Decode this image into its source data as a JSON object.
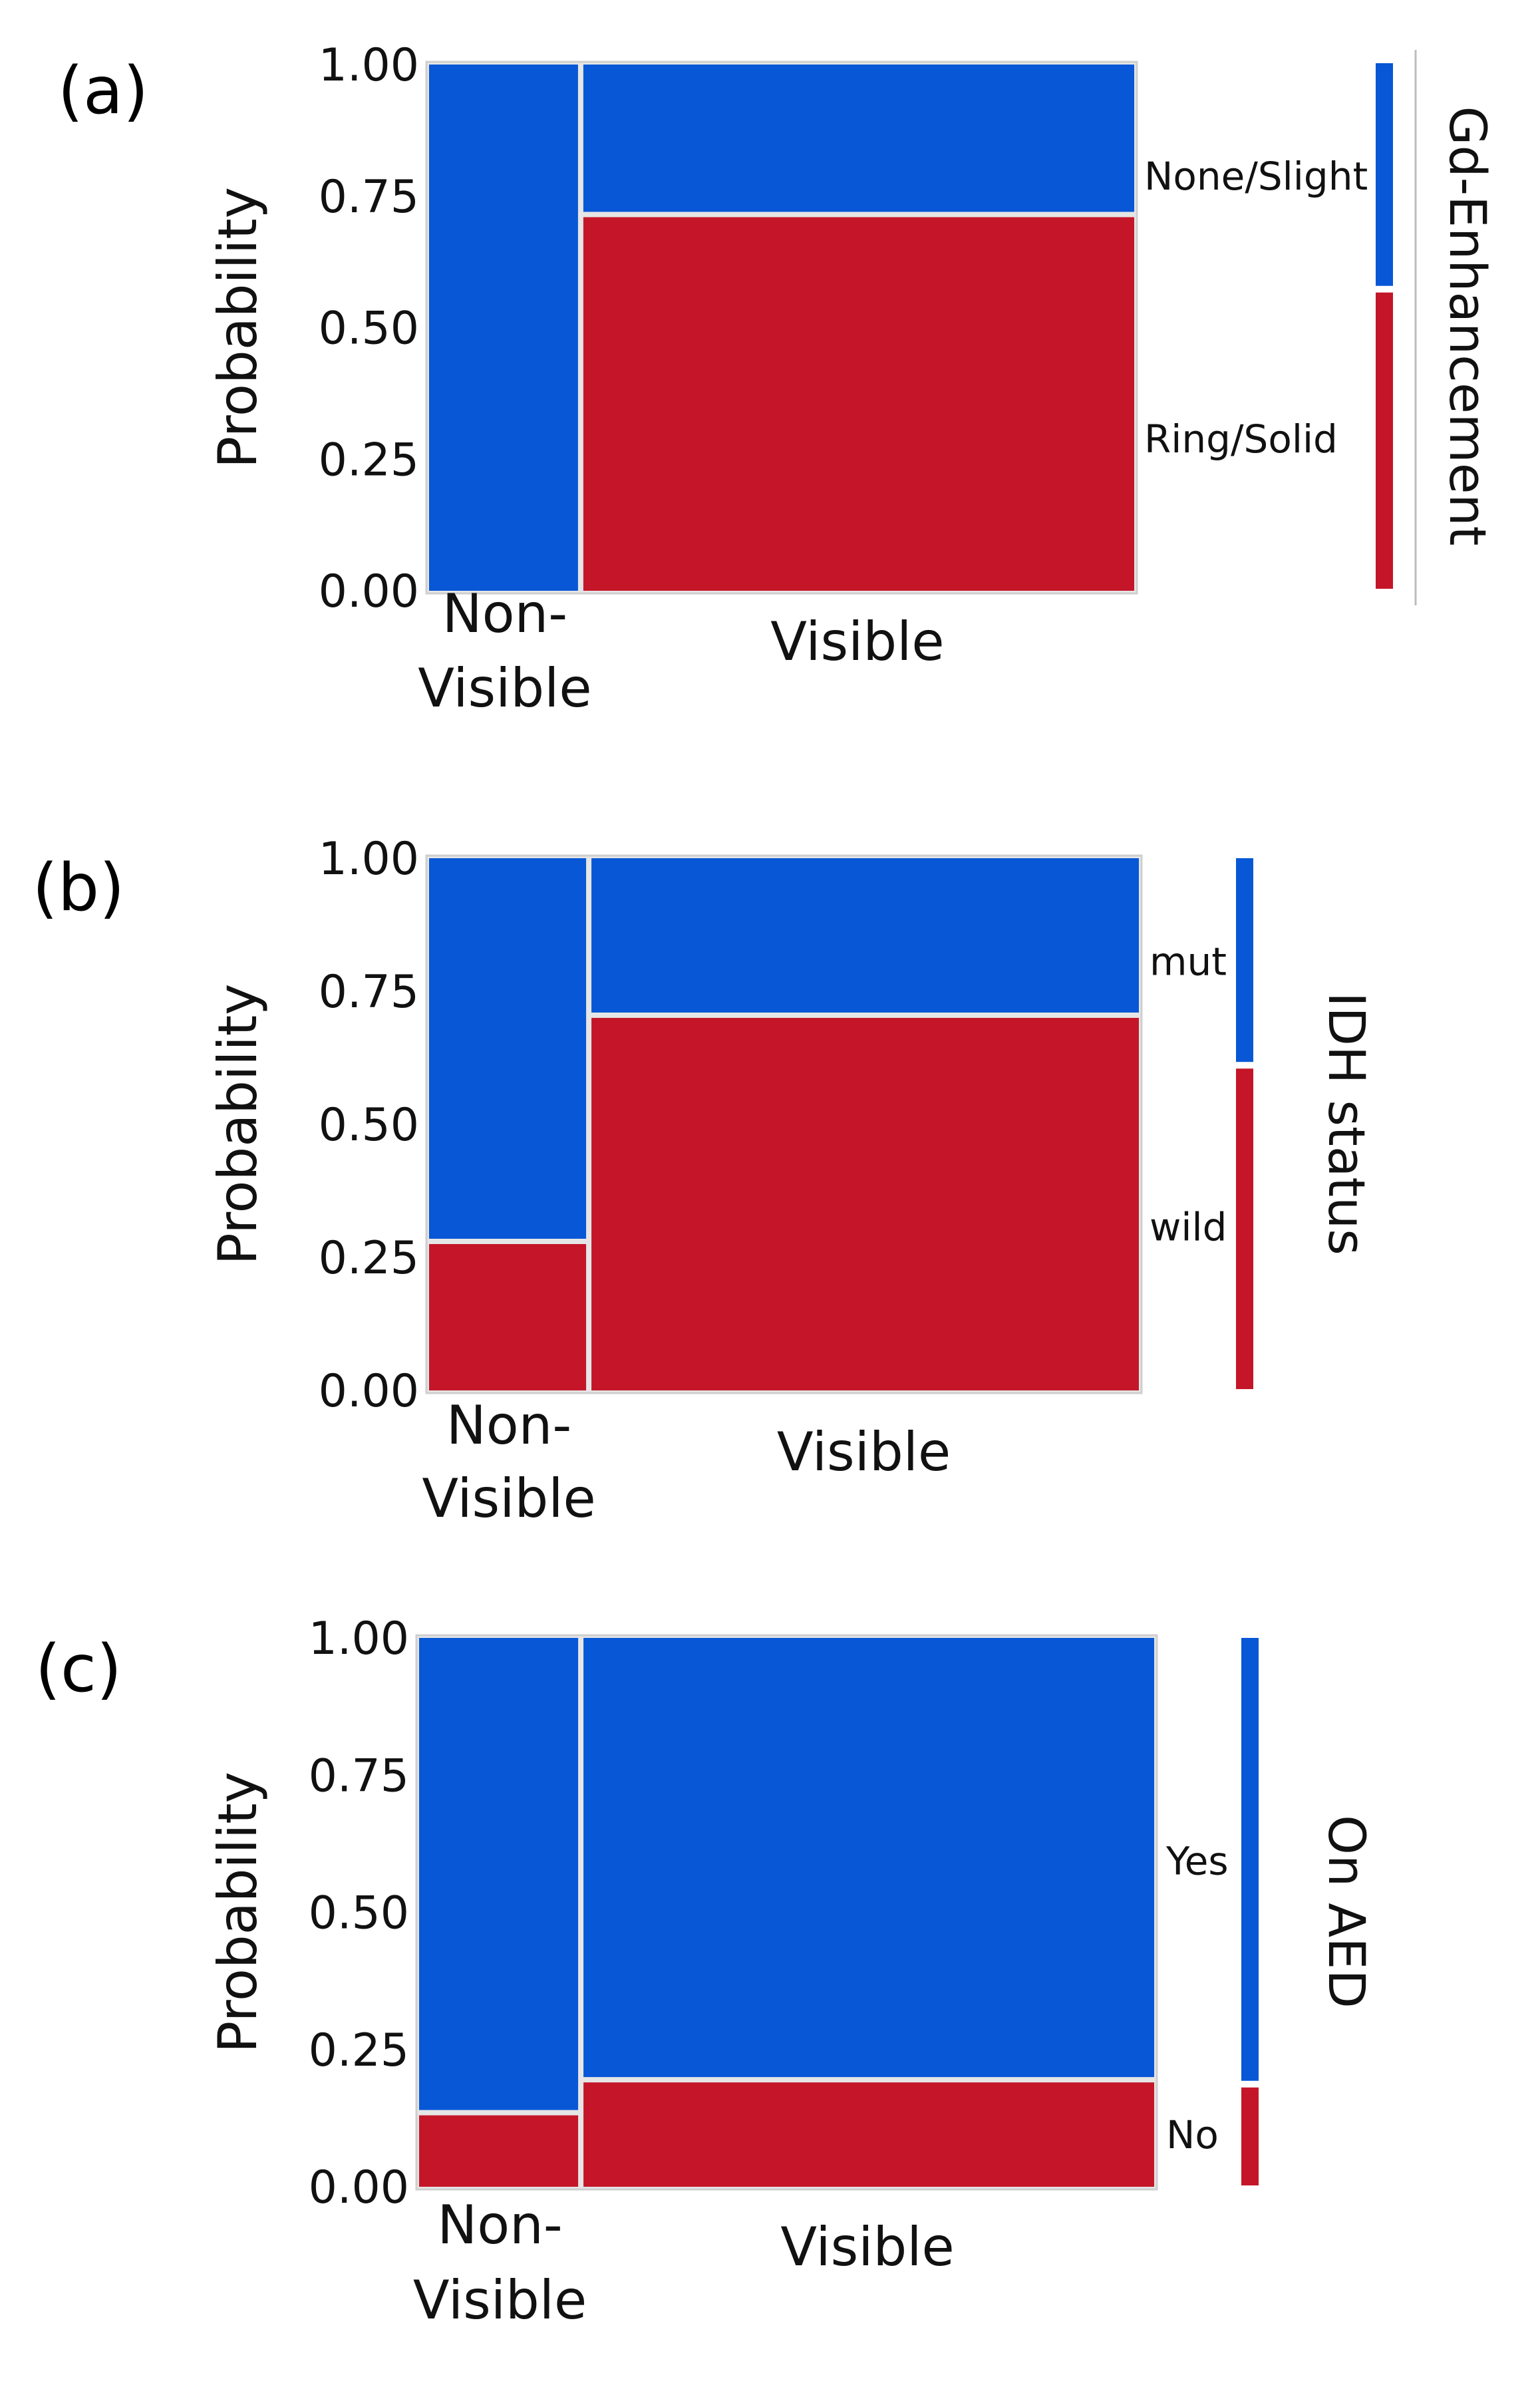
{
  "figure_title": "",
  "colors": {
    "blue": "#0757D6",
    "red": "#C41628",
    "divider": "#E6E6E6",
    "frame": "#CFCFCF"
  },
  "chart_data": [
    {
      "type": "mosaic",
      "panel_label": "(a)",
      "ylabel": "Probability",
      "yticks": [
        "0.00",
        "0.25",
        "0.50",
        "0.75",
        "1.00"
      ],
      "ylim": [
        0,
        1
      ],
      "categories": [
        {
          "label_lines": [
            "Non-",
            "Visible"
          ],
          "width_fraction": 0.215
        },
        {
          "label_lines": [
            "Visible"
          ],
          "width_fraction": 0.785
        }
      ],
      "legend_title": "Gd-Enhancement",
      "series": [
        {
          "name": "Ring/Solid",
          "color": "red",
          "values": [
            0.0,
            0.715
          ]
        },
        {
          "name": "None/Slight",
          "color": "blue",
          "values": [
            1.0,
            0.285
          ]
        }
      ],
      "legend_levels": [
        {
          "label": "None/Slight",
          "fraction": 0.43
        },
        {
          "label": "Ring/Solid",
          "fraction": 0.57
        }
      ]
    },
    {
      "type": "mosaic",
      "panel_label": "(b)",
      "ylabel": "Probability",
      "yticks": [
        "0.00",
        "0.25",
        "0.50",
        "0.75",
        "1.00"
      ],
      "ylim": [
        0,
        1
      ],
      "categories": [
        {
          "label_lines": [
            "Non-",
            "Visible"
          ],
          "width_fraction": 0.225
        },
        {
          "label_lines": [
            "Visible"
          ],
          "width_fraction": 0.775
        }
      ],
      "legend_title": "IDH status",
      "series": [
        {
          "name": "wild",
          "color": "red",
          "values": [
            0.28,
            0.705
          ]
        },
        {
          "name": "mut",
          "color": "blue",
          "values": [
            0.72,
            0.295
          ]
        }
      ],
      "legend_levels": [
        {
          "label": "mut",
          "fraction": 0.39
        },
        {
          "label": "wild",
          "fraction": 0.61
        }
      ]
    },
    {
      "type": "mosaic",
      "panel_label": "(c)",
      "ylabel": "Probability",
      "yticks": [
        "0.00",
        "0.25",
        "0.50",
        "0.75",
        "1.00"
      ],
      "ylim": [
        0,
        1
      ],
      "categories": [
        {
          "label_lines": [
            "Non-",
            "Visible"
          ],
          "width_fraction": 0.22
        },
        {
          "label_lines": [
            "Visible"
          ],
          "width_fraction": 0.78
        }
      ],
      "legend_title": "On AED",
      "series": [
        {
          "name": "No",
          "color": "red",
          "values": [
            0.135,
            0.195
          ]
        },
        {
          "name": "Yes",
          "color": "blue",
          "values": [
            0.865,
            0.805
          ]
        }
      ],
      "legend_levels": [
        {
          "label": "Yes",
          "fraction": 0.815
        },
        {
          "label": "No",
          "fraction": 0.185
        }
      ]
    }
  ]
}
